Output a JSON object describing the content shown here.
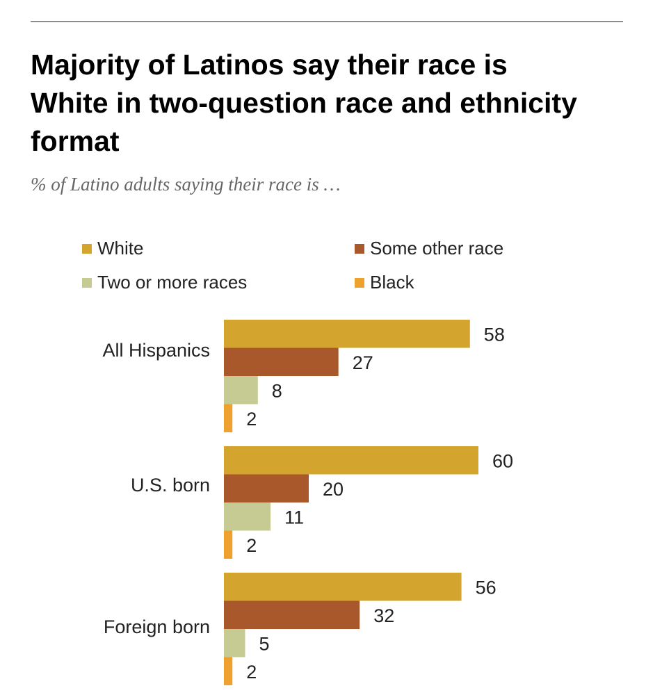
{
  "chart_data": {
    "type": "bar",
    "orientation": "horizontal",
    "title": "Majority of Latinos say their race is White in two-question race and ethnicity format",
    "title_lines": [
      "Majority of Latinos say their race is",
      "White in two-question race and ethnicity",
      "format"
    ],
    "subtitle": "% of Latino adults saying their race is …",
    "categories": [
      "All Hispanics",
      "U.S. born",
      "Foreign born"
    ],
    "series": [
      {
        "name": "White",
        "color": "#d4a52e",
        "values": [
          58,
          60,
          56
        ]
      },
      {
        "name": "Some other race",
        "color": "#a8582a",
        "values": [
          27,
          20,
          32
        ]
      },
      {
        "name": "Two or more races",
        "color": "#c5cb92",
        "values": [
          8,
          11,
          5
        ]
      },
      {
        "name": "Black",
        "color": "#eea12e",
        "values": [
          2,
          2,
          2
        ]
      }
    ],
    "xlim": [
      0,
      100
    ],
    "grid": false,
    "legend_position": "top"
  }
}
